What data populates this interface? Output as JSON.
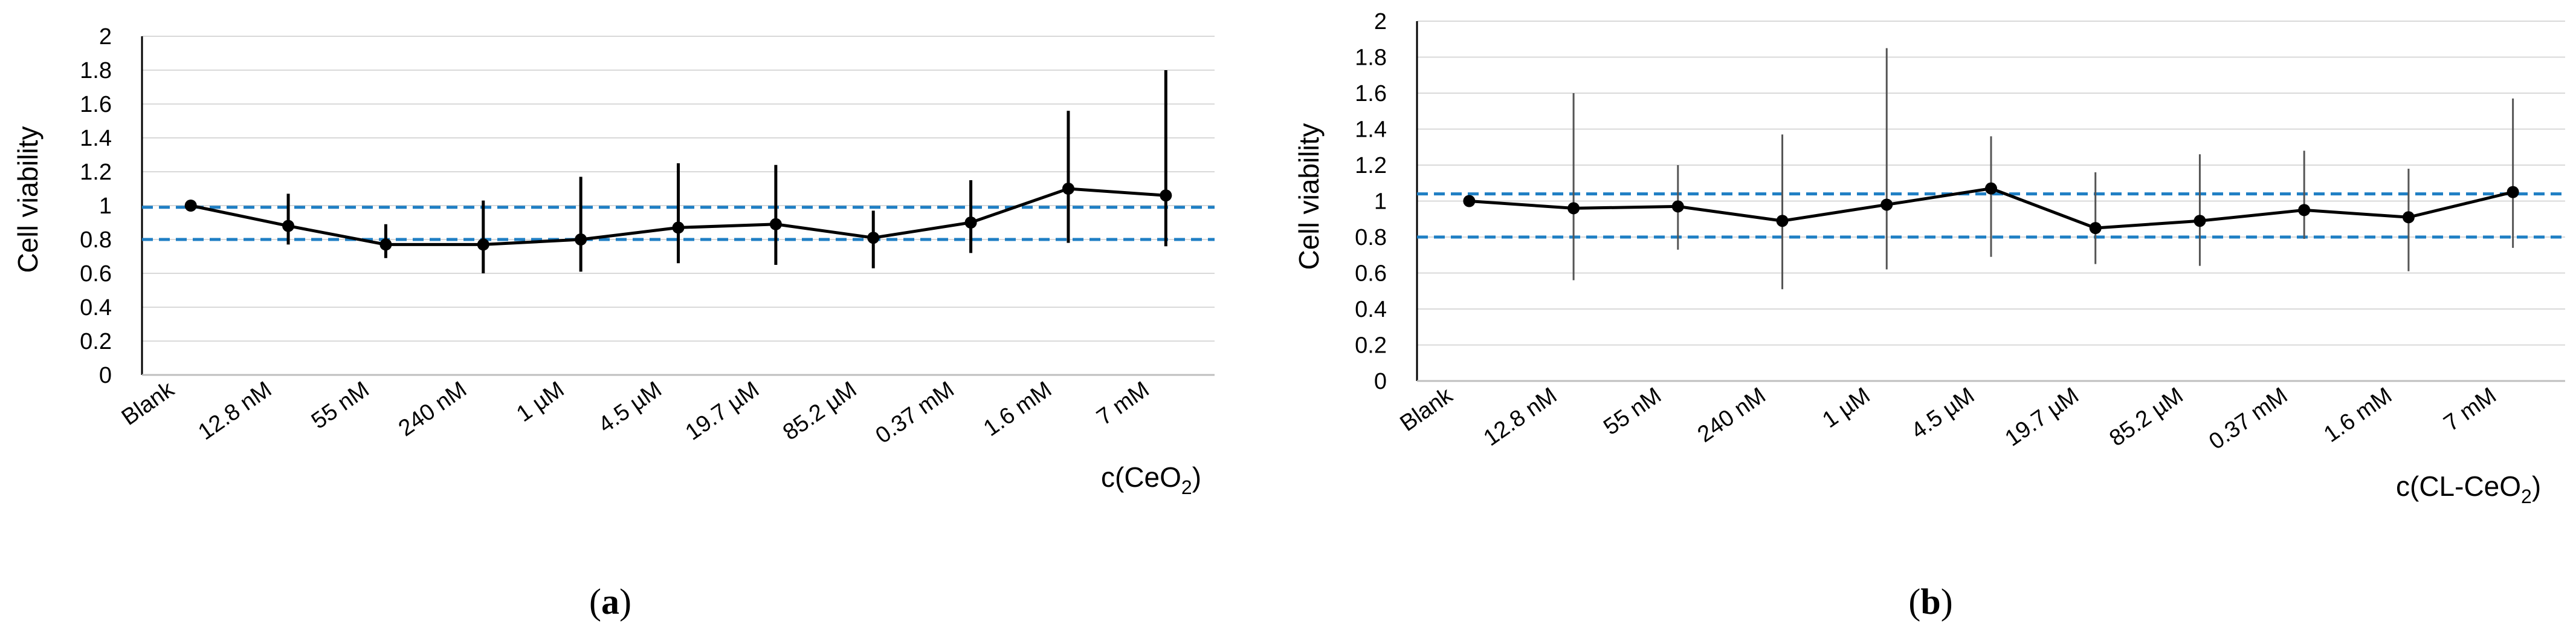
{
  "chart_data": [
    {
      "type": "line",
      "panel": "a",
      "ylabel": "Cell viability",
      "xlabel": "c(CeO",
      "xlabel_sub": "2",
      "xlabel_end": ")",
      "ylim": [
        0,
        2
      ],
      "yticks": [
        "0",
        "0.2",
        "0.4",
        "0.6",
        "0.8",
        "1",
        "1.2",
        "1.4",
        "1.6",
        "1.8",
        "2"
      ],
      "categories": [
        "Blank",
        "12.8 nM",
        "55 nM",
        "240 nM",
        "1 µM",
        "4.5 µM",
        "19.7 µM",
        "85.2 µM",
        "0.37 mM",
        "1.6 mM",
        "7 mM"
      ],
      "values": [
        1.0,
        0.88,
        0.77,
        0.77,
        0.8,
        0.87,
        0.89,
        0.81,
        0.9,
        1.1,
        1.06
      ],
      "error_low": [
        1.0,
        0.77,
        0.69,
        0.6,
        0.61,
        0.66,
        0.65,
        0.63,
        0.72,
        0.78,
        0.76
      ],
      "error_high": [
        1.0,
        1.07,
        0.89,
        1.03,
        1.17,
        1.25,
        1.24,
        0.97,
        1.15,
        1.56,
        1.8
      ],
      "reference_lines": [
        0.99,
        0.8
      ],
      "reference_color": "#1f7fc4",
      "line_color": "#000000",
      "error_color": "#000000",
      "grid": true
    },
    {
      "type": "line",
      "panel": "b",
      "ylabel": "Cell viability",
      "xlabel": "c(CL-CeO",
      "xlabel_sub": "2",
      "xlabel_end": ")",
      "ylim": [
        0,
        2
      ],
      "yticks": [
        "0",
        "0.2",
        "0.4",
        "0.6",
        "0.8",
        "1",
        "1.2",
        "1.4",
        "1.6",
        "1.8",
        "2"
      ],
      "categories": [
        "Blank",
        "12.8 nM",
        "55 nM",
        "240 nM",
        "1 µM",
        "4.5 µM",
        "19.7 µM",
        "85.2 µM",
        "0.37 mM",
        "1.6 mM",
        "7 mM"
      ],
      "values": [
        1.0,
        0.96,
        0.97,
        0.89,
        0.98,
        1.07,
        0.85,
        0.89,
        0.95,
        0.91,
        1.05
      ],
      "error_low": [
        1.0,
        0.56,
        0.73,
        0.51,
        0.62,
        0.69,
        0.65,
        0.64,
        0.79,
        0.61,
        0.74
      ],
      "error_high": [
        1.0,
        1.6,
        1.2,
        1.37,
        1.85,
        1.36,
        1.16,
        1.26,
        1.28,
        1.18,
        1.57
      ],
      "reference_lines": [
        1.04,
        0.8
      ],
      "reference_color": "#1f7fc4",
      "line_color": "#000000",
      "error_color": "#555555",
      "grid": true
    }
  ],
  "panel_labels": [
    {
      "open": "(",
      "letter": "a",
      "close": ")"
    },
    {
      "open": "(",
      "letter": "b",
      "close": ")"
    }
  ]
}
